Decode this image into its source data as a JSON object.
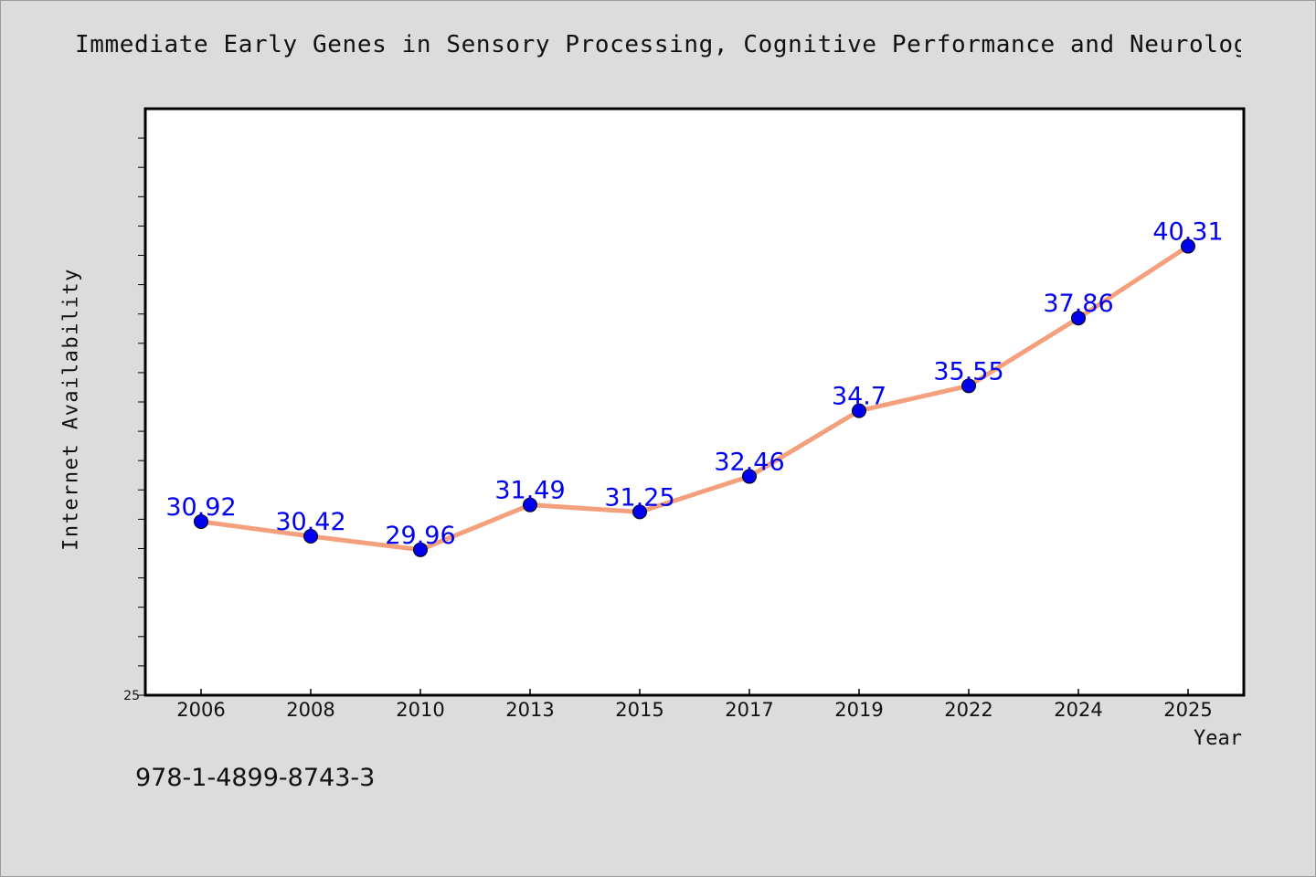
{
  "chart_data": {
    "type": "line",
    "title": "Immediate Early Genes in Sensory Processing, Cognitive Performance and Neurologi",
    "xlabel": "Year",
    "ylabel": "Internet Availability",
    "categories": [
      "2006",
      "2008",
      "2010",
      "2013",
      "2015",
      "2017",
      "2019",
      "2022",
      "2024",
      "2025"
    ],
    "series": [
      {
        "values": [
          30.92,
          30.42,
          29.96,
          31.49,
          31.25,
          32.46,
          34.7,
          35.55,
          37.86,
          40.31
        ],
        "labels": [
          "30.92",
          "30.42",
          "29.96",
          "31.49",
          "31.25",
          "32.46",
          "34.7",
          "35.55",
          "37.86",
          "40.31"
        ],
        "line_color": "#f4a07c",
        "marker_color": "#0000ee",
        "label_color": "#0000ee"
      }
    ],
    "ylim": [
      25,
      45
    ],
    "y_tick_labels": [
      "25"
    ],
    "y_minor_step": 1,
    "grid": false,
    "legend": "none"
  },
  "footer": {
    "isbn": "978-1-4899-8743-3"
  },
  "colors": {
    "background": "#dcdcdc",
    "plot_background": "#ffffff",
    "axis": "#000000"
  }
}
